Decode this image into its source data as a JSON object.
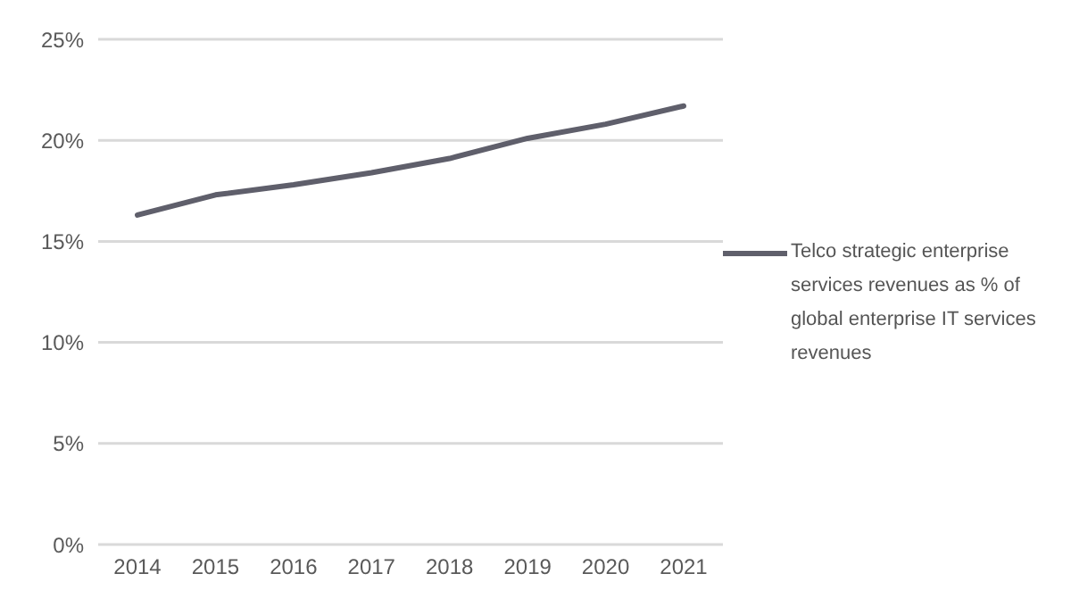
{
  "chart_data": {
    "type": "line",
    "categories": [
      "2014",
      "2015",
      "2016",
      "2017",
      "2018",
      "2019",
      "2020",
      "2021"
    ],
    "series": [
      {
        "name": "Telco strategic enterprise services revenues as % of global enterprise IT services revenues",
        "color": "#5f5f6b",
        "values": [
          16.3,
          17.3,
          17.8,
          18.4,
          19.1,
          20.1,
          20.8,
          21.7
        ]
      }
    ],
    "ylim": [
      0,
      25
    ],
    "yticks": [
      {
        "value": 0,
        "label": "0%"
      },
      {
        "value": 5,
        "label": "5%"
      },
      {
        "value": 10,
        "label": "10%"
      },
      {
        "value": 15,
        "label": "15%"
      },
      {
        "value": 20,
        "label": "20%"
      },
      {
        "value": 25,
        "label": "25%"
      }
    ],
    "grid": "y",
    "legend": "right",
    "marker": "none",
    "line_style": "solid"
  }
}
